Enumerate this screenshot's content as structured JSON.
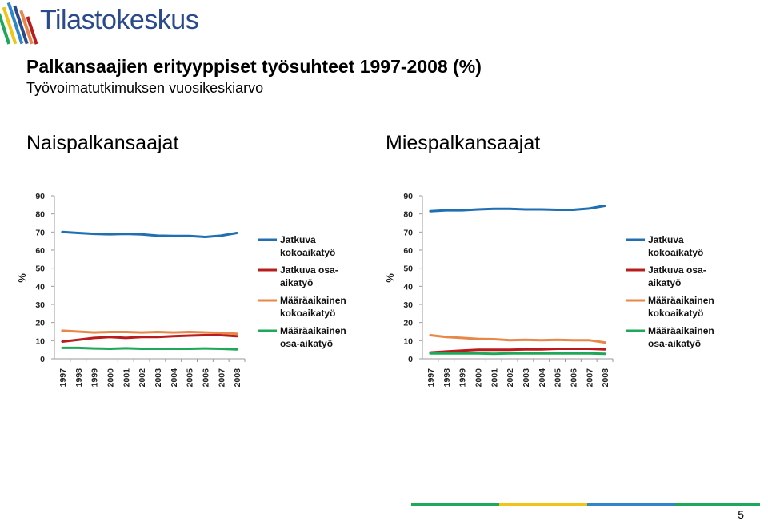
{
  "logo": {
    "text": "Tilastokeskus"
  },
  "title": "Palkansaajien erityyppiset työsuhteet 1997-2008 (%)",
  "subtitle": "Työvoimatutkimuksen vuosikeskiarvo",
  "page_number": "5",
  "colors": {
    "jatkuva_koko": "#1f6fb2",
    "jatkuva_osa": "#b81c1c",
    "maara_koko": "#e8874a",
    "maara_osa": "#1fa85a",
    "logo_blue": "#2a4a8c",
    "footer": [
      "#1fa85a",
      "#f0c419",
      "#2f86c8",
      "#1fa85a"
    ]
  },
  "chart_data": [
    {
      "type": "line",
      "title": "Naispalkansaajat",
      "ylabel": "%",
      "ylim": [
        0,
        90
      ],
      "yticks": [
        "0",
        "10",
        "20",
        "30",
        "40",
        "50",
        "60",
        "70",
        "80",
        "90"
      ],
      "categories": [
        "1997",
        "1998",
        "1999",
        "2000",
        "2001",
        "2002",
        "2003",
        "2004",
        "2005",
        "2006",
        "2007",
        "2008"
      ],
      "series": [
        {
          "name": "Jatkuva kokoaikatyö",
          "lines": [
            "Jatkuva",
            "kokoaikatyö"
          ],
          "color_key": "jatkuva_koko",
          "values": [
            70,
            69.5,
            69,
            68.8,
            69,
            68.7,
            68,
            67.8,
            67.8,
            67.3,
            68,
            69.5
          ]
        },
        {
          "name": "Jatkuva osa-aikatyö",
          "lines": [
            "Jatkuva osa-",
            "aikatyö"
          ],
          "color_key": "jatkuva_osa",
          "values": [
            9.5,
            10.5,
            11.5,
            12,
            11.5,
            12,
            12,
            12.5,
            12.8,
            13,
            13,
            12.5
          ]
        },
        {
          "name": "Määräaikainen kokoaikatyö",
          "lines": [
            "Määräaikainen",
            "kokoaikatyö"
          ],
          "color_key": "maara_koko",
          "values": [
            15.5,
            15,
            14.5,
            14.8,
            14.8,
            14.5,
            14.8,
            14.5,
            14.8,
            14.5,
            14.3,
            13.8
          ]
        },
        {
          "name": "Määräaikainen osa-aikatyö",
          "lines": [
            "Määräaikainen",
            "osa-aikatyö"
          ],
          "color_key": "maara_osa",
          "values": [
            6,
            6,
            5.7,
            5.5,
            5.8,
            5.5,
            5.5,
            5.5,
            5.5,
            5.7,
            5.5,
            5.2
          ]
        }
      ]
    },
    {
      "type": "line",
      "title": "Miespalkansaajat",
      "ylabel": "%",
      "ylim": [
        0,
        90
      ],
      "yticks": [
        "0",
        "10",
        "20",
        "30",
        "40",
        "50",
        "60",
        "70",
        "80",
        "90"
      ],
      "categories": [
        "1997",
        "1998",
        "1999",
        "2000",
        "2001",
        "2002",
        "2003",
        "2004",
        "2005",
        "2006",
        "2007",
        "2008"
      ],
      "series": [
        {
          "name": "Jatkuva kokoaikatyö",
          "lines": [
            "Jatkuva",
            "kokoaikatyö"
          ],
          "color_key": "jatkuva_koko",
          "values": [
            81.5,
            82,
            82,
            82.5,
            82.8,
            82.8,
            82.5,
            82.5,
            82.3,
            82.3,
            83,
            84.5
          ]
        },
        {
          "name": "Jatkuva osa-aikatyö",
          "lines": [
            "Jatkuva osa-",
            "aikatyö"
          ],
          "color_key": "jatkuva_osa",
          "values": [
            3.5,
            4,
            4.5,
            5,
            5,
            5,
            5.2,
            5.2,
            5.5,
            5.5,
            5.5,
            5.2
          ]
        },
        {
          "name": "Määräaikainen kokoaikatyö",
          "lines": [
            "Määräaikainen",
            "kokoaikatyö"
          ],
          "color_key": "maara_koko",
          "values": [
            13,
            12,
            11.5,
            11,
            10.8,
            10.3,
            10.5,
            10.3,
            10.5,
            10.3,
            10.3,
            9
          ]
        },
        {
          "name": "Määräaikainen osa-aikatyö",
          "lines": [
            "Määräaikainen",
            "osa-aikatyö"
          ],
          "color_key": "maara_osa",
          "values": [
            3,
            3,
            3,
            3,
            2.8,
            3,
            3,
            3,
            3,
            3,
            3,
            2.8
          ]
        }
      ]
    }
  ]
}
